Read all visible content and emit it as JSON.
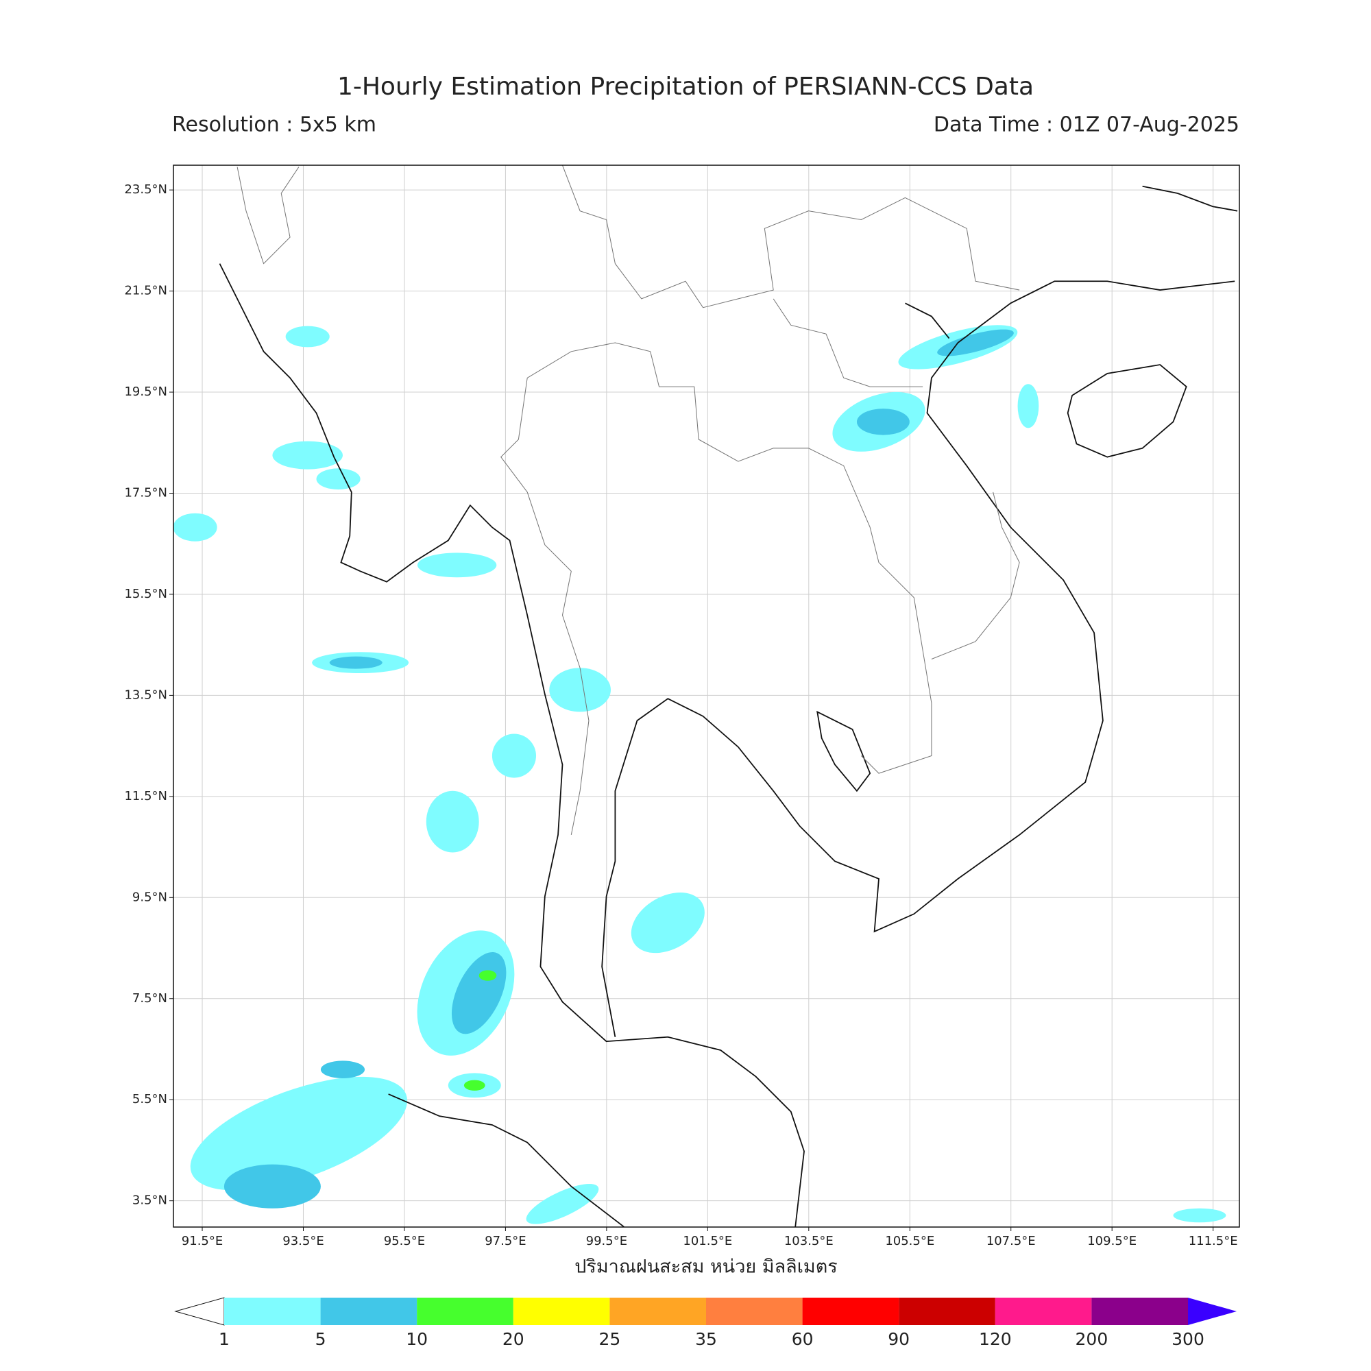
{
  "header": {
    "title": "1-Hourly Estimation Precipitation of PERSIANN-CCS Data",
    "resolution": "Resolution : 5x5 km",
    "data_time": "Data Time : 01Z 07-Aug-2025"
  },
  "map": {
    "xlim": [
      90.93,
      112.02
    ],
    "ylim": [
      2.98,
      23.99
    ],
    "grid": true,
    "xticks": [
      {
        "value": 91.5,
        "label": "91.5°E"
      },
      {
        "value": 93.5,
        "label": "93.5°E"
      },
      {
        "value": 95.5,
        "label": "95.5°E"
      },
      {
        "value": 97.5,
        "label": "97.5°E"
      },
      {
        "value": 99.5,
        "label": "99.5°E"
      },
      {
        "value": 101.5,
        "label": "101.5°E"
      },
      {
        "value": 103.5,
        "label": "103.5°E"
      },
      {
        "value": 105.5,
        "label": "105.5°E"
      },
      {
        "value": 107.5,
        "label": "107.5°E"
      },
      {
        "value": 109.5,
        "label": "109.5°E"
      },
      {
        "value": 111.5,
        "label": "111.5°E"
      }
    ],
    "yticks": [
      {
        "value": 3.5,
        "label": "3.5°N"
      },
      {
        "value": 5.5,
        "label": "5.5°N"
      },
      {
        "value": 7.5,
        "label": "7.5°N"
      },
      {
        "value": 9.5,
        "label": "9.5°N"
      },
      {
        "value": 11.5,
        "label": "11.5°N"
      },
      {
        "value": 13.5,
        "label": "13.5°N"
      },
      {
        "value": 15.5,
        "label": "15.5°N"
      },
      {
        "value": 17.5,
        "label": "17.5°N"
      },
      {
        "value": 19.5,
        "label": "19.5°N"
      },
      {
        "value": 21.5,
        "label": "21.5°N"
      },
      {
        "value": 23.5,
        "label": "23.5°N"
      }
    ],
    "xlabel": "ปริมาณฝนสะสม หน่วย มิลลิเมตร"
  },
  "colorbar": {
    "levels": [
      1,
      5,
      10,
      20,
      25,
      35,
      60,
      90,
      120,
      200,
      300
    ],
    "colors": [
      "#7ffcff",
      "#41c7e8",
      "#46ff2d",
      "#ffff00",
      "#ffa524",
      "#ff7f3f",
      "#ff0000",
      "#cc0000",
      "#ff1a8c",
      "#8b008b"
    ],
    "under_color": "#ffffff",
    "over_color": "#3a00ff"
  }
}
